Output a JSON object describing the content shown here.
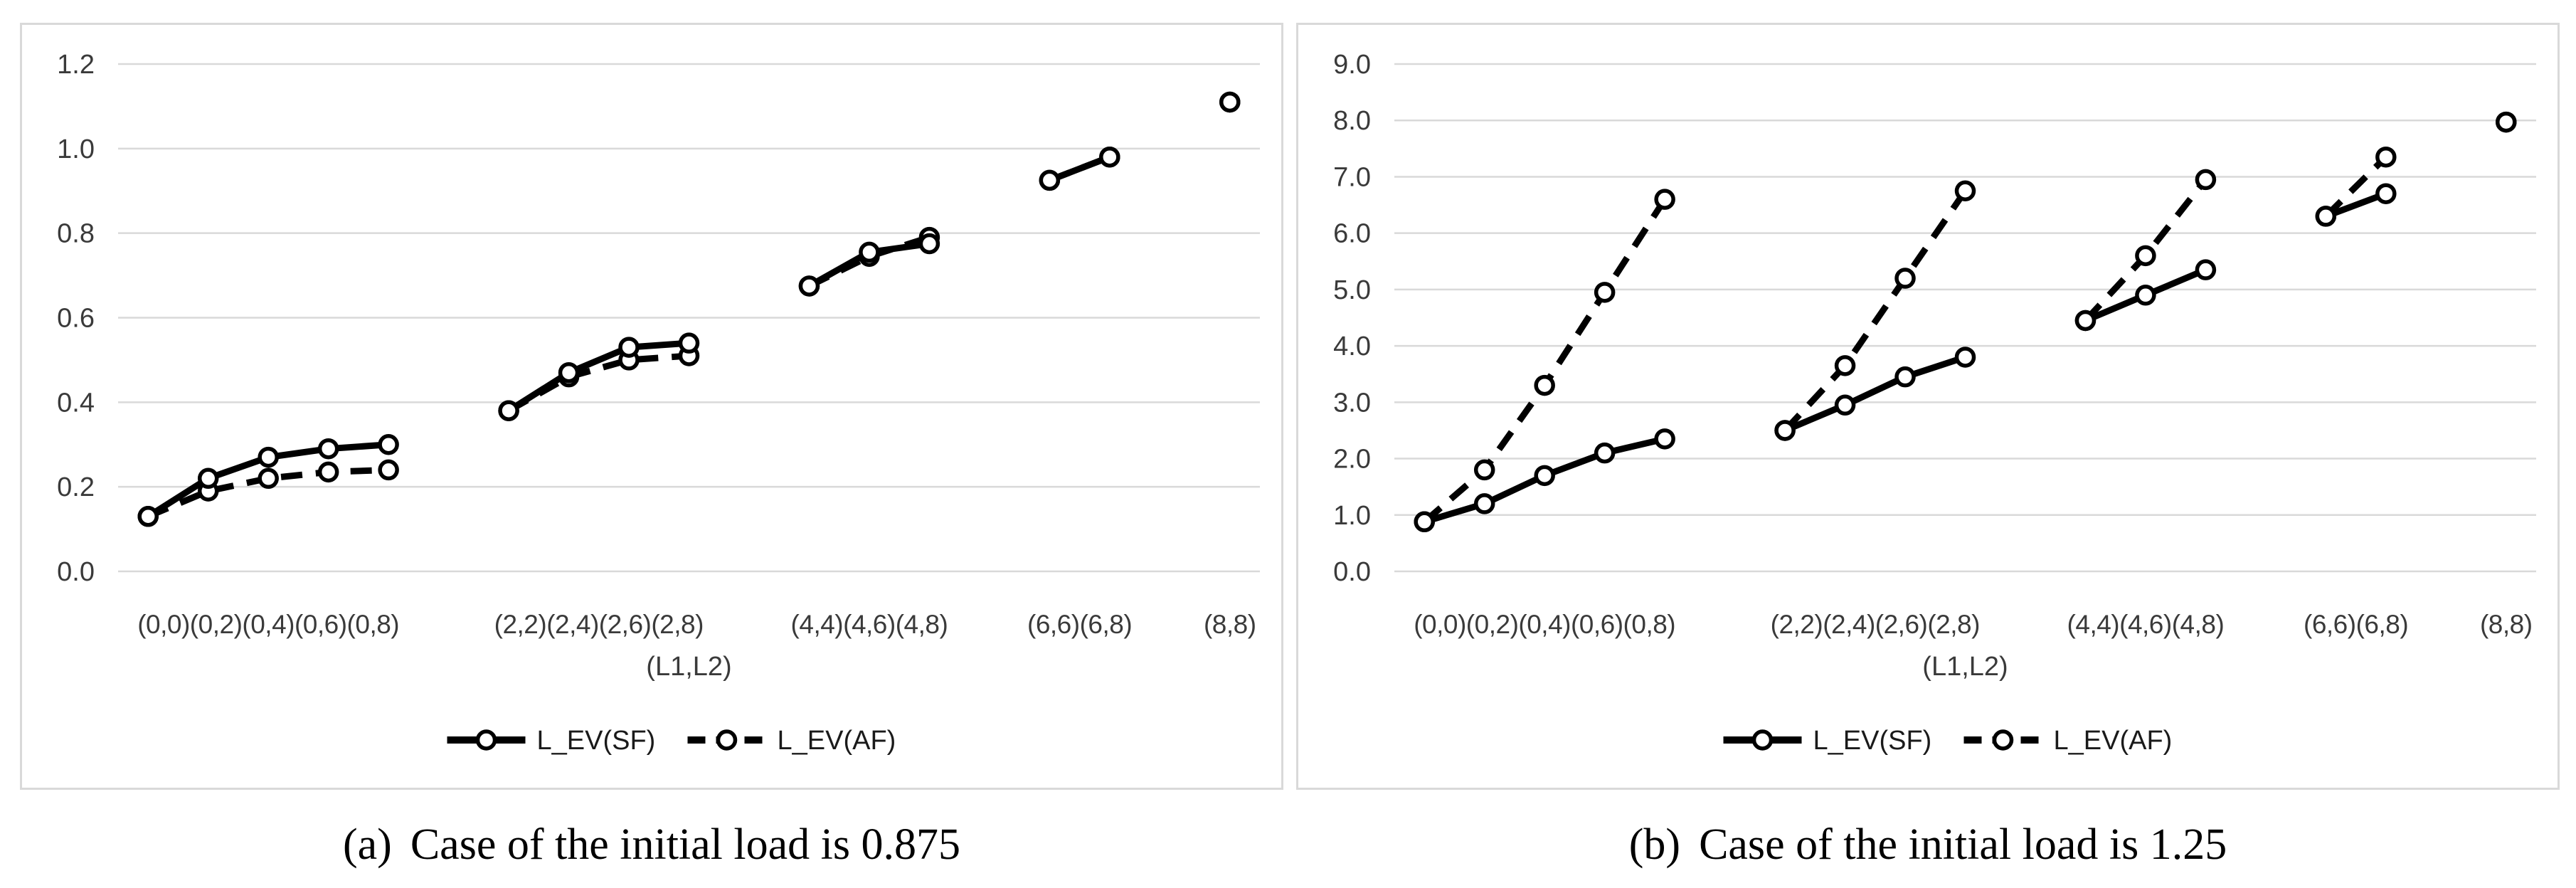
{
  "style": {
    "series_color": "#000000",
    "grid_color": "#d9d9d9",
    "border_color": "#d9d9d9",
    "text_color": "#3a3a3a",
    "marker_fill": "#ffffff",
    "background": "#ffffff"
  },
  "chart_data": [
    {
      "type": "line",
      "caption_label": "(a)",
      "caption_text": "Case of the initial load is 0.875",
      "xlabel": "(L1,L2)",
      "ylim": [
        0.0,
        1.2
      ],
      "grid": true,
      "legend_position": "bottom",
      "yticks": [
        {
          "v": 0.0,
          "t": "0.0"
        },
        {
          "v": 0.2,
          "t": "0.2"
        },
        {
          "v": 0.4,
          "t": "0.4"
        },
        {
          "v": 0.6,
          "t": "0.6"
        },
        {
          "v": 0.8,
          "t": "0.8"
        },
        {
          "v": 1.0,
          "t": "1.0"
        },
        {
          "v": 1.2,
          "t": "1.2"
        }
      ],
      "x_groups": [
        [
          "(0,0)",
          "(0,2)",
          "(0,4)",
          "(0,6)",
          "(0,8)"
        ],
        [
          "(2,2)",
          "(2,4)",
          "(2,6)",
          "(2,8)"
        ],
        [
          "(4,4)",
          "(4,6)",
          "(4,8)"
        ],
        [
          "(6,6)",
          "(6,8)"
        ],
        [
          "(8,8)"
        ]
      ],
      "series": [
        {
          "name": "L_EV(SF)",
          "style": "solid",
          "values": [
            [
              0.13,
              0.22,
              0.27,
              0.29,
              0.3
            ],
            [
              0.38,
              0.47,
              0.53,
              0.54
            ],
            [
              0.675,
              0.755,
              0.775
            ],
            [
              0.925,
              0.98
            ],
            [
              1.11
            ]
          ]
        },
        {
          "name": "L_EV(AF)",
          "style": "dashed",
          "values": [
            [
              0.13,
              0.19,
              0.22,
              0.235,
              0.24
            ],
            [
              0.38,
              0.46,
              0.5,
              0.51
            ],
            [
              0.675,
              0.745,
              0.79
            ],
            [
              0.925,
              0.98
            ],
            [
              1.11
            ]
          ]
        }
      ]
    },
    {
      "type": "line",
      "caption_label": "(b)",
      "caption_text": "Case of the initial load is 1.25",
      "xlabel": "(L1,L2)",
      "ylim": [
        0.0,
        9.0
      ],
      "grid": true,
      "legend_position": "bottom",
      "yticks": [
        {
          "v": 0.0,
          "t": "0.0"
        },
        {
          "v": 1.0,
          "t": "1.0"
        },
        {
          "v": 2.0,
          "t": "2.0"
        },
        {
          "v": 3.0,
          "t": "3.0"
        },
        {
          "v": 4.0,
          "t": "4.0"
        },
        {
          "v": 5.0,
          "t": "5.0"
        },
        {
          "v": 6.0,
          "t": "6.0"
        },
        {
          "v": 7.0,
          "t": "7.0"
        },
        {
          "v": 8.0,
          "t": "8.0"
        },
        {
          "v": 9.0,
          "t": "9.0"
        }
      ],
      "x_groups": [
        [
          "(0,0)",
          "(0,2)",
          "(0,4)",
          "(0,6)",
          "(0,8)"
        ],
        [
          "(2,2)",
          "(2,4)",
          "(2,6)",
          "(2,8)"
        ],
        [
          "(4,4)",
          "(4,6)",
          "(4,8)"
        ],
        [
          "(6,6)",
          "(6,8)"
        ],
        [
          "(8,8)"
        ]
      ],
      "series": [
        {
          "name": "L_EV(SF)",
          "style": "solid",
          "values": [
            [
              0.88,
              1.2,
              1.7,
              2.1,
              2.35
            ],
            [
              2.5,
              2.95,
              3.45,
              3.8
            ],
            [
              4.45,
              4.9,
              5.35
            ],
            [
              6.3,
              6.7
            ],
            [
              7.97
            ]
          ]
        },
        {
          "name": "L_EV(AF)",
          "style": "dashed",
          "values": [
            [
              0.88,
              1.8,
              3.3,
              4.95,
              6.6
            ],
            [
              2.5,
              3.65,
              5.2,
              6.75
            ],
            [
              4.45,
              5.6,
              6.95
            ],
            [
              6.3,
              7.35
            ],
            [
              7.97
            ]
          ]
        }
      ]
    }
  ]
}
